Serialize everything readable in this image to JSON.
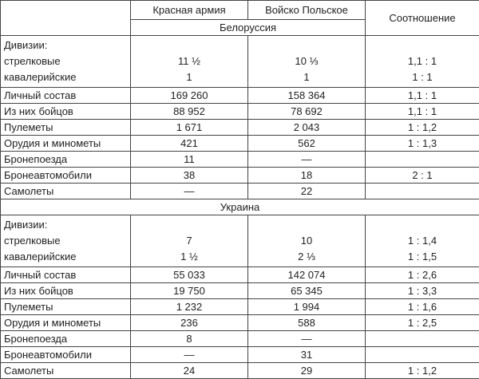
{
  "header": {
    "columns": [
      "Красная армия",
      "Войско Польское",
      "Соотношение"
    ]
  },
  "sections": [
    {
      "title": "Белоруссия",
      "divisions": {
        "label": "Дивизии:",
        "rows": [
          [
            "стрелковые",
            "11 ½",
            "10 ⅓",
            "1,1 : 1"
          ],
          [
            "кавалерийские",
            "1",
            "1",
            "1 : 1"
          ]
        ]
      },
      "rows": [
        [
          "Личный состав",
          "169 260",
          "158 364",
          "1,1 : 1"
        ],
        [
          "Из них бойцов",
          "88 952",
          "78 692",
          "1,1 : 1"
        ],
        [
          "Пулеметы",
          "1 671",
          "2 043",
          "1 : 1,2"
        ],
        [
          "Орудия и минометы",
          "421",
          "562",
          "1 : 1,3"
        ],
        [
          "Бронепоезда",
          "11",
          "—",
          null
        ],
        [
          "Бронеавтомобили",
          "38",
          "18",
          "2 : 1"
        ],
        [
          "Самолеты",
          "—",
          "22",
          null
        ]
      ]
    },
    {
      "title": "Украина",
      "divisions": {
        "label": "Дивизии:",
        "rows": [
          [
            "стрелковые",
            "7",
            "10",
            "1 : 1,4"
          ],
          [
            "кавалерийские",
            "1 ½",
            "2 ⅓",
            "1 : 1,5"
          ]
        ]
      },
      "rows": [
        [
          "Личный состав",
          "55 033",
          "142 074",
          "1 : 2,6"
        ],
        [
          "Из них бойцов",
          "19 750",
          "65 345",
          "1 : 3,3"
        ],
        [
          "Пулеметы",
          "1 232",
          "1 994",
          "1 : 1,6"
        ],
        [
          "Орудия и минометы",
          "236",
          "588",
          "1 : 2,5"
        ],
        [
          "Бронепоезда",
          "8",
          "—",
          null
        ],
        [
          "Бронеавтомобили",
          "—",
          "31",
          null
        ],
        [
          "Самолеты",
          "24",
          "29",
          "1 : 1,2"
        ]
      ]
    }
  ]
}
